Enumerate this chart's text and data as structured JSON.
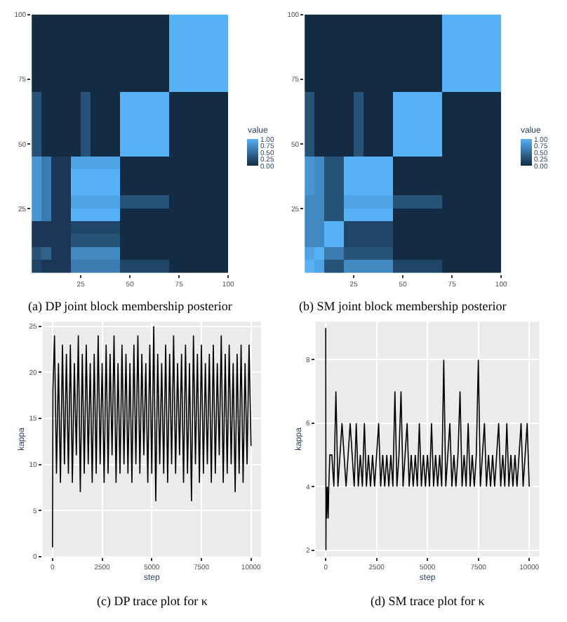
{
  "chart_data": [
    {
      "type": "heatmap",
      "annotations": [
        "(a) DP joint block membership posterior"
      ],
      "clabel": "value",
      "colors": [
        "#132b43",
        "#56b1f7"
      ],
      "x": [
        2.5,
        7.5,
        12.5,
        17.5,
        22.5,
        27.5,
        32.5,
        37.5,
        42.5,
        47.5,
        52.5,
        57.5,
        62.5,
        67.5,
        72.5,
        77.5,
        82.5,
        87.5,
        92.5,
        97.5
      ],
      "y": [
        2.5,
        7.5,
        12.5,
        17.5,
        22.5,
        27.5,
        32.5,
        37.5,
        42.5,
        47.5,
        52.5,
        57.5,
        62.5,
        67.5,
        72.5,
        77.5,
        82.5,
        87.5,
        92.5,
        97.5
      ],
      "xlim": [
        0,
        100
      ],
      "ylim": [
        0,
        100
      ],
      "xticks": [
        25,
        50,
        75,
        100
      ],
      "yticks": [
        25,
        50,
        75,
        100
      ],
      "clim": [
        0,
        1
      ],
      "cticks": [
        {
          "value": 0,
          "label": "0.00"
        },
        {
          "value": 0.25,
          "label": "0.25"
        },
        {
          "value": 0.5,
          "label": "0.50"
        },
        {
          "value": 0.75,
          "label": "0.75"
        },
        {
          "value": 1,
          "label": "1.00"
        }
      ],
      "cells": [
        [
          0.2,
          0.1,
          0.1,
          0.1,
          0.6,
          0.6,
          0.6,
          0.6,
          0.6,
          0.2,
          0.2,
          0.2,
          0.2,
          0.2,
          0,
          0,
          0,
          0,
          0,
          0
        ],
        [
          0.3,
          0.4,
          0.1,
          0.1,
          0.7,
          0.7,
          0.7,
          0.7,
          0.7,
          0,
          0,
          0,
          0,
          0,
          0,
          0,
          0,
          0,
          0,
          0
        ],
        [
          0.1,
          0.1,
          0.1,
          0.1,
          0.3,
          0.3,
          0.3,
          0.3,
          0.3,
          0,
          0,
          0,
          0,
          0,
          0,
          0,
          0,
          0,
          0,
          0
        ],
        [
          0.1,
          0.1,
          0.1,
          0.1,
          0.2,
          0.2,
          0.2,
          0.2,
          0.2,
          0,
          0,
          0,
          0,
          0,
          0,
          0,
          0,
          0,
          0,
          0
        ],
        [
          0.8,
          0.6,
          0.1,
          0.1,
          1,
          1,
          1,
          1,
          1,
          0,
          0,
          0,
          0,
          0,
          0,
          0,
          0,
          0,
          0,
          0
        ],
        [
          0.8,
          0.6,
          0.1,
          0.1,
          0.9,
          0.9,
          0.9,
          0.9,
          0.9,
          0.3,
          0.3,
          0.3,
          0.3,
          0.3,
          0,
          0,
          0,
          0,
          0,
          0
        ],
        [
          0.8,
          0.6,
          0.1,
          0.1,
          1,
          1,
          1,
          1,
          1,
          0,
          0,
          0,
          0,
          0,
          0,
          0,
          0,
          0,
          0,
          0
        ],
        [
          0.8,
          0.6,
          0.1,
          0.1,
          1,
          1,
          1,
          1,
          1,
          0,
          0,
          0,
          0,
          0,
          0,
          0,
          0,
          0,
          0,
          0
        ],
        [
          0.8,
          0.6,
          0.1,
          0.1,
          0.9,
          0.9,
          0.9,
          0.9,
          0.9,
          0,
          0,
          0,
          0,
          0,
          0,
          0,
          0,
          0,
          0,
          0
        ],
        [
          0.3,
          0,
          0,
          0,
          0,
          0.3,
          0,
          0,
          0,
          1,
          1,
          1,
          1,
          1,
          0,
          0,
          0,
          0,
          0,
          0
        ],
        [
          0.3,
          0,
          0,
          0,
          0,
          0.3,
          0,
          0,
          0,
          1,
          1,
          1,
          1,
          1,
          0,
          0,
          0,
          0,
          0,
          0
        ],
        [
          0.3,
          0,
          0,
          0,
          0,
          0.3,
          0,
          0,
          0,
          1,
          1,
          1,
          1,
          1,
          0,
          0,
          0,
          0,
          0,
          0
        ],
        [
          0.3,
          0,
          0,
          0,
          0,
          0.3,
          0,
          0,
          0,
          1,
          1,
          1,
          1,
          1,
          0,
          0,
          0,
          0,
          0,
          0
        ],
        [
          0.3,
          0,
          0,
          0,
          0,
          0.3,
          0,
          0,
          0,
          1,
          1,
          1,
          1,
          1,
          0,
          0,
          0,
          0,
          0,
          0
        ],
        [
          0,
          0,
          0,
          0,
          0,
          0,
          0,
          0,
          0,
          0,
          0,
          0,
          0,
          0,
          1,
          1,
          1,
          1,
          1,
          1
        ],
        [
          0,
          0,
          0,
          0,
          0,
          0,
          0,
          0,
          0,
          0,
          0,
          0,
          0,
          0,
          1,
          1,
          1,
          1,
          1,
          1
        ],
        [
          0,
          0,
          0,
          0,
          0,
          0,
          0,
          0,
          0,
          0,
          0,
          0,
          0,
          0,
          1,
          1,
          1,
          1,
          1,
          1
        ],
        [
          0,
          0,
          0,
          0,
          0,
          0,
          0,
          0,
          0,
          0,
          0,
          0,
          0,
          0,
          1,
          1,
          1,
          1,
          1,
          1
        ],
        [
          0,
          0,
          0,
          0,
          0,
          0,
          0,
          0,
          0,
          0,
          0,
          0,
          0,
          0,
          1,
          1,
          1,
          1,
          1,
          1
        ],
        [
          0,
          0,
          0,
          0,
          0,
          0,
          0,
          0,
          0,
          0,
          0,
          0,
          0,
          0,
          1,
          1,
          1,
          1,
          1,
          1
        ]
      ]
    },
    {
      "type": "heatmap",
      "annotations": [
        "(b) SM joint block membership posterior"
      ],
      "clabel": "value",
      "colors": [
        "#132b43",
        "#56b1f7"
      ],
      "x": [
        2.5,
        7.5,
        12.5,
        17.5,
        22.5,
        27.5,
        32.5,
        37.5,
        42.5,
        47.5,
        52.5,
        57.5,
        62.5,
        67.5,
        72.5,
        77.5,
        82.5,
        87.5,
        92.5,
        97.5
      ],
      "y": [
        2.5,
        7.5,
        12.5,
        17.5,
        22.5,
        27.5,
        32.5,
        37.5,
        42.5,
        47.5,
        52.5,
        57.5,
        62.5,
        67.5,
        72.5,
        77.5,
        82.5,
        87.5,
        92.5,
        97.5
      ],
      "xlim": [
        0,
        100
      ],
      "ylim": [
        0,
        100
      ],
      "xticks": [
        25,
        50,
        75,
        100
      ],
      "yticks": [
        25,
        50,
        75,
        100
      ],
      "clim": [
        0,
        1
      ],
      "cticks": [
        {
          "value": 0,
          "label": "0.00"
        },
        {
          "value": 0.25,
          "label": "0.25"
        },
        {
          "value": 0.5,
          "label": "0.50"
        },
        {
          "value": 0.75,
          "label": "0.75"
        },
        {
          "value": 1,
          "label": "1.00"
        }
      ],
      "cells": [
        [
          1,
          0.9,
          0.3,
          0.3,
          0.7,
          0.7,
          0.7,
          0.7,
          0.7,
          0.2,
          0.2,
          0.2,
          0.2,
          0.2,
          0,
          0,
          0,
          0,
          0,
          0
        ],
        [
          0.9,
          1,
          0.6,
          0.6,
          0.3,
          0.3,
          0.3,
          0.3,
          0.3,
          0,
          0,
          0,
          0,
          0,
          0,
          0,
          0,
          0,
          0,
          0
        ],
        [
          0.7,
          0.7,
          1,
          1,
          0.2,
          0.2,
          0.2,
          0.2,
          0.2,
          0,
          0,
          0,
          0,
          0,
          0,
          0,
          0,
          0,
          0,
          0
        ],
        [
          0.7,
          0.7,
          1,
          1,
          0.2,
          0.2,
          0.2,
          0.2,
          0.2,
          0,
          0,
          0,
          0,
          0,
          0,
          0,
          0,
          0,
          0,
          0
        ],
        [
          0.7,
          0.7,
          0.3,
          0.3,
          1,
          1,
          1,
          1,
          1,
          0,
          0,
          0,
          0,
          0,
          0,
          0,
          0,
          0,
          0,
          0
        ],
        [
          0.7,
          0.7,
          0.3,
          0.3,
          0.9,
          0.9,
          0.9,
          0.9,
          0.9,
          0.3,
          0.3,
          0.3,
          0.3,
          0.3,
          0,
          0,
          0,
          0,
          0,
          0
        ],
        [
          0.8,
          0.7,
          0.3,
          0.3,
          1,
          1,
          1,
          1,
          1,
          0,
          0,
          0,
          0,
          0,
          0,
          0,
          0,
          0,
          0,
          0
        ],
        [
          0.8,
          0.7,
          0.3,
          0.3,
          1,
          1,
          1,
          1,
          1,
          0,
          0,
          0,
          0,
          0,
          0,
          0,
          0,
          0,
          0,
          0
        ],
        [
          0.8,
          0.7,
          0.3,
          0.3,
          1,
          1,
          1,
          1,
          1,
          0,
          0,
          0,
          0,
          0,
          0,
          0,
          0,
          0,
          0,
          0
        ],
        [
          0.3,
          0,
          0,
          0,
          0,
          0.3,
          0,
          0,
          0,
          1,
          1,
          1,
          1,
          1,
          0,
          0,
          0,
          0,
          0,
          0
        ],
        [
          0.3,
          0,
          0,
          0,
          0,
          0.3,
          0,
          0,
          0,
          1,
          1,
          1,
          1,
          1,
          0,
          0,
          0,
          0,
          0,
          0
        ],
        [
          0.3,
          0,
          0,
          0,
          0,
          0.3,
          0,
          0,
          0,
          1,
          1,
          1,
          1,
          1,
          0,
          0,
          0,
          0,
          0,
          0
        ],
        [
          0.3,
          0,
          0,
          0,
          0,
          0.3,
          0,
          0,
          0,
          1,
          1,
          1,
          1,
          1,
          0,
          0,
          0,
          0,
          0,
          0
        ],
        [
          0.3,
          0,
          0,
          0,
          0,
          0.3,
          0,
          0,
          0,
          1,
          1,
          1,
          1,
          1,
          0,
          0,
          0,
          0,
          0,
          0
        ],
        [
          0,
          0,
          0,
          0,
          0,
          0,
          0,
          0,
          0,
          0,
          0,
          0,
          0,
          0,
          1,
          1,
          1,
          1,
          1,
          1
        ],
        [
          0,
          0,
          0,
          0,
          0,
          0,
          0,
          0,
          0,
          0,
          0,
          0,
          0,
          0,
          1,
          1,
          1,
          1,
          1,
          1
        ],
        [
          0,
          0,
          0,
          0,
          0,
          0,
          0,
          0,
          0,
          0,
          0,
          0,
          0,
          0,
          1,
          1,
          1,
          1,
          1,
          1
        ],
        [
          0,
          0,
          0,
          0,
          0,
          0,
          0,
          0,
          0,
          0,
          0,
          0,
          0,
          0,
          1,
          1,
          1,
          1,
          1,
          1
        ],
        [
          0,
          0,
          0,
          0,
          0,
          0,
          0,
          0,
          0,
          0,
          0,
          0,
          0,
          0,
          1,
          1,
          1,
          1,
          1,
          1
        ],
        [
          0,
          0,
          0,
          0,
          0,
          0,
          0,
          0,
          0,
          0,
          0,
          0,
          0,
          0,
          1,
          1,
          1,
          1,
          1,
          1
        ]
      ]
    },
    {
      "type": "line",
      "annotations": [
        "(c) DP trace plot for κ"
      ],
      "xlabel": "step",
      "ylabel": "kappa",
      "grid": true,
      "xlim": [
        -500,
        10500
      ],
      "ylim": [
        0,
        25.5
      ],
      "xticks": [
        0,
        2500,
        5000,
        7500,
        10000
      ],
      "yticks": [
        0,
        5,
        10,
        15,
        20,
        25
      ],
      "x": [
        0,
        20,
        100,
        200,
        300,
        400,
        500,
        600,
        700,
        800,
        900,
        1000,
        1100,
        1200,
        1300,
        1400,
        1500,
        1600,
        1700,
        1800,
        1900,
        2000,
        2100,
        2200,
        2300,
        2400,
        2500,
        2600,
        2700,
        2800,
        2900,
        3000,
        3100,
        3200,
        3300,
        3400,
        3500,
        3600,
        3700,
        3800,
        3900,
        4000,
        4100,
        4200,
        4300,
        4400,
        4500,
        4600,
        4700,
        4800,
        4900,
        5000,
        5100,
        5200,
        5300,
        5400,
        5500,
        5600,
        5700,
        5800,
        5900,
        6000,
        6100,
        6200,
        6300,
        6400,
        6500,
        6600,
        6700,
        6800,
        6900,
        7000,
        7100,
        7200,
        7300,
        7400,
        7500,
        7600,
        7700,
        7800,
        7900,
        8000,
        8100,
        8200,
        8300,
        8400,
        8500,
        8600,
        8700,
        8800,
        8900,
        9000,
        9100,
        9200,
        9300,
        9400,
        9500,
        9600,
        9700,
        9800,
        9900,
        10000
      ],
      "series": [
        {
          "color": "#000000",
          "values": [
            1,
            18,
            24,
            9,
            21,
            8,
            23,
            10,
            22,
            9,
            23,
            8,
            21,
            11,
            24,
            7,
            22,
            9,
            23,
            10,
            21,
            8,
            22,
            9,
            24,
            10,
            21,
            8,
            23,
            9,
            22,
            11,
            24,
            8,
            21,
            9,
            23,
            10,
            22,
            9,
            21,
            8,
            23,
            10,
            24,
            9,
            22,
            11,
            21,
            8,
            23,
            9,
            25,
            6,
            22,
            10,
            21,
            9,
            23,
            8,
            22,
            10,
            24,
            9,
            21,
            11,
            22,
            8,
            23,
            9,
            21,
            6,
            24,
            10,
            22,
            8,
            23,
            9,
            21,
            10,
            22,
            8,
            23,
            9,
            21,
            11,
            24,
            8,
            22,
            9,
            23,
            10,
            21,
            7,
            22,
            9,
            23,
            8,
            21,
            10,
            23,
            12
          ]
        }
      ]
    },
    {
      "type": "line",
      "annotations": [
        "(d) SM trace plot for κ"
      ],
      "xlabel": "step",
      "ylabel": "kappa",
      "grid": true,
      "xlim": [
        -500,
        10500
      ],
      "ylim": [
        1.8,
        9.2
      ],
      "xticks": [
        0,
        2500,
        5000,
        7500,
        10000
      ],
      "yticks": [
        2,
        4,
        6,
        8
      ],
      "x": [
        0,
        10,
        20,
        40,
        80,
        120,
        150,
        200,
        300,
        400,
        500,
        600,
        700,
        800,
        900,
        1000,
        1100,
        1200,
        1300,
        1400,
        1500,
        1600,
        1700,
        1800,
        1900,
        2000,
        2100,
        2200,
        2300,
        2400,
        2500,
        2600,
        2700,
        2800,
        2900,
        3000,
        3100,
        3200,
        3300,
        3400,
        3500,
        3600,
        3700,
        3800,
        3900,
        4000,
        4100,
        4200,
        4300,
        4400,
        4500,
        4600,
        4700,
        4800,
        4900,
        5000,
        5100,
        5200,
        5300,
        5400,
        5500,
        5600,
        5700,
        5800,
        5900,
        6000,
        6100,
        6200,
        6300,
        6400,
        6500,
        6600,
        6700,
        6800,
        6900,
        7000,
        7100,
        7200,
        7300,
        7400,
        7500,
        7600,
        7700,
        7800,
        7900,
        8000,
        8100,
        8200,
        8300,
        8400,
        8500,
        8600,
        8700,
        8800,
        8900,
        9000,
        9100,
        9200,
        9300,
        9400,
        9500,
        9600,
        9700,
        9800,
        9900,
        10000
      ],
      "series": [
        {
          "color": "#000000",
          "values": [
            9,
            2,
            4,
            3,
            4,
            3,
            4,
            5,
            5,
            4,
            7,
            4,
            5,
            6,
            5,
            4,
            5,
            6,
            5,
            4,
            6,
            4,
            5,
            4,
            6,
            4,
            5,
            4,
            5,
            4,
            5,
            6,
            4,
            5,
            4,
            5,
            4,
            5,
            4,
            7,
            4,
            5,
            7,
            4,
            5,
            6,
            4,
            5,
            4,
            5,
            4,
            6,
            4,
            5,
            4,
            5,
            4,
            6,
            4,
            5,
            4,
            5,
            4,
            8,
            4,
            5,
            6,
            4,
            5,
            4,
            5,
            7,
            4,
            5,
            4,
            6,
            4,
            5,
            4,
            5,
            8,
            4,
            5,
            6,
            4,
            5,
            4,
            5,
            4,
            5,
            6,
            4,
            5,
            4,
            6,
            4,
            5,
            4,
            5,
            4,
            5,
            6,
            4,
            5,
            6,
            4
          ]
        }
      ]
    }
  ]
}
